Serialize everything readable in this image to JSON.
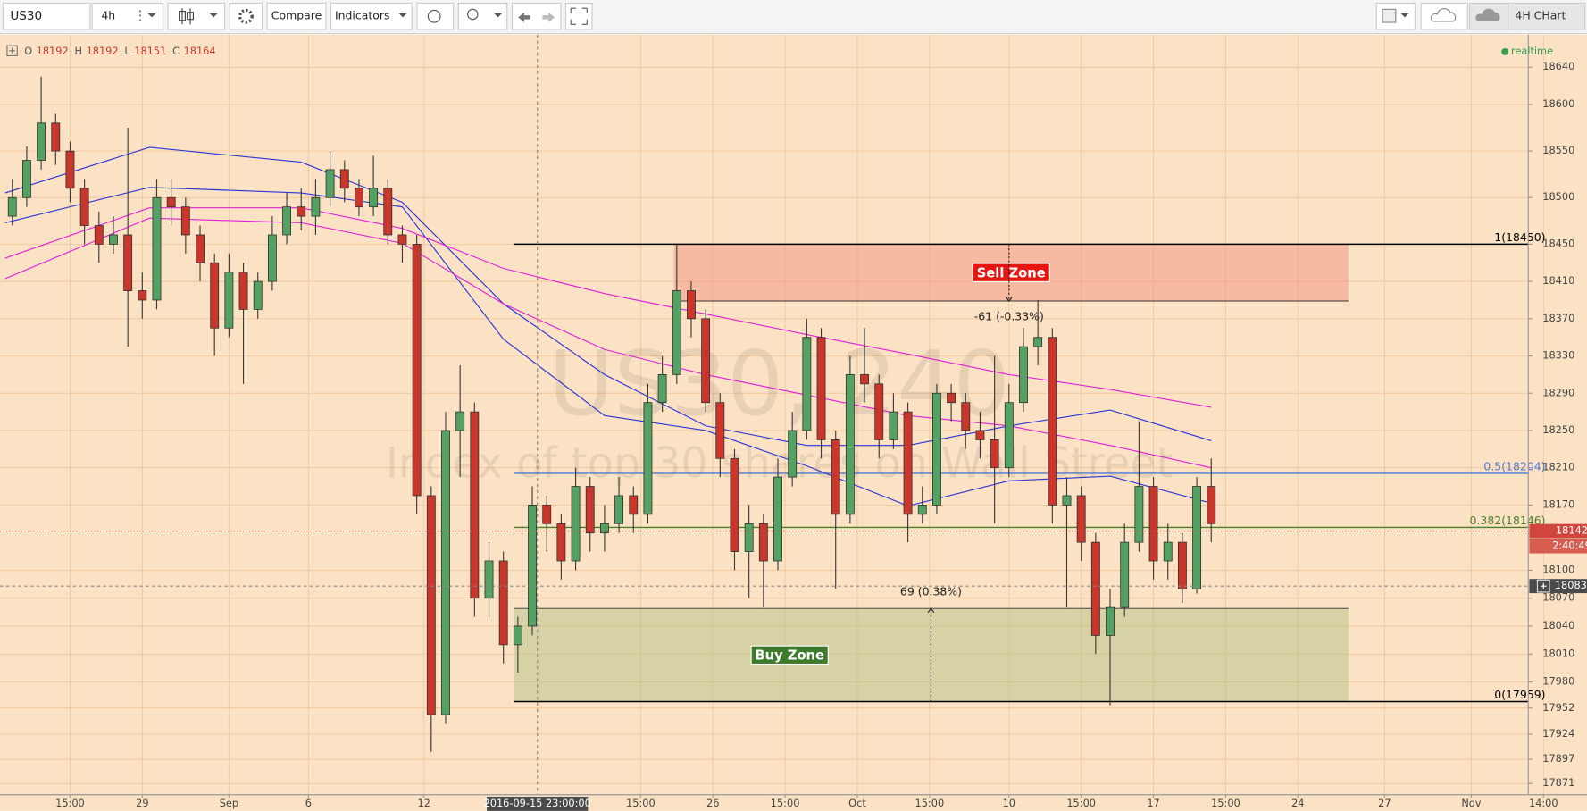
{
  "toolbar": {
    "symbol": "US30",
    "interval": "4h",
    "compare": "Compare",
    "indicators": "Indicators",
    "layout": "4H CHart"
  },
  "chart_data": {
    "type": "candlestick",
    "watermark": "US30, 240",
    "watermark_subtitle": "Index of top 30 shares on Wall Street",
    "ohlc_legend": {
      "labels": [
        "O",
        "H",
        "L",
        "C"
      ],
      "values": [
        18192,
        18192,
        18151,
        18164
      ]
    },
    "status": "realtime",
    "up_color": "#55a164",
    "down_color": "#c9372c",
    "x": [
      1,
      3,
      5,
      7,
      9,
      11,
      13,
      15,
      17,
      19,
      21,
      23,
      25,
      27,
      29,
      31,
      33,
      35,
      37,
      39,
      41,
      43,
      45,
      47,
      49,
      51,
      53,
      55,
      57,
      59,
      61,
      63,
      65,
      67,
      69,
      71,
      73,
      75,
      77,
      79,
      81,
      83,
      85,
      87,
      89,
      91,
      93,
      95,
      97,
      99,
      101,
      103,
      105,
      107,
      109,
      111,
      113,
      115,
      117,
      119,
      121,
      123,
      125,
      127,
      129,
      131,
      133,
      135,
      137,
      139,
      141,
      143,
      145,
      147,
      149,
      151,
      153,
      155,
      157,
      159,
      161,
      163,
      165,
      167
    ],
    "open": [
      18480,
      18500,
      18540,
      18580,
      18550,
      18510,
      18470,
      18450,
      18460,
      18400,
      18390,
      18500,
      18490,
      18460,
      18430,
      18360,
      18420,
      18380,
      18410,
      18460,
      18490,
      18480,
      18500,
      18530,
      18510,
      18490,
      18510,
      18460,
      18450,
      18180,
      17945,
      18250,
      18270,
      18070,
      18110,
      18020,
      18040,
      18170,
      18150,
      18110,
      18190,
      18140,
      18150,
      18180,
      18160,
      18280,
      18310,
      18400,
      18370,
      18280,
      18220,
      18120,
      18150,
      18110,
      18200,
      18250,
      18350,
      18240,
      18160,
      18310,
      18300,
      18240,
      18270,
      18160,
      18170,
      18290,
      18280,
      18250,
      18240,
      18210,
      18280,
      18340,
      18350,
      18170,
      18180,
      18130,
      18030,
      18060,
      18130,
      18190,
      18110,
      18130,
      18080,
      18190
    ],
    "high": [
      18520,
      18555,
      18630,
      18590,
      18560,
      18520,
      18485,
      18480,
      18575,
      18420,
      18520,
      18520,
      18500,
      18470,
      18440,
      18440,
      18430,
      18420,
      18480,
      18505,
      18510,
      18520,
      18550,
      18540,
      18520,
      18545,
      18520,
      18470,
      18460,
      18190,
      18270,
      18320,
      18280,
      18130,
      18120,
      18050,
      18190,
      18180,
      18160,
      18210,
      18200,
      18170,
      18200,
      18190,
      18300,
      18330,
      18450,
      18410,
      18380,
      18290,
      18230,
      18170,
      18160,
      18220,
      18270,
      18370,
      18360,
      18250,
      18330,
      18360,
      18310,
      18290,
      18280,
      18190,
      18300,
      18300,
      18290,
      18270,
      18330,
      18300,
      18360,
      18390,
      18360,
      18200,
      18190,
      18140,
      18080,
      18150,
      18260,
      18200,
      18150,
      18140,
      18200,
      18220
    ],
    "low": [
      18470,
      18490,
      18530,
      18535,
      18495,
      18450,
      18430,
      18440,
      18340,
      18370,
      18380,
      18470,
      18440,
      18410,
      18330,
      18350,
      18300,
      18370,
      18400,
      18450,
      18465,
      18460,
      18490,
      18495,
      18480,
      18480,
      18450,
      18430,
      18160,
      17905,
      17935,
      18200,
      18050,
      18050,
      18000,
      17990,
      18030,
      18120,
      18090,
      18100,
      18120,
      18120,
      18140,
      18140,
      18150,
      18270,
      18300,
      18350,
      18270,
      18200,
      18100,
      18070,
      18060,
      18100,
      18190,
      18240,
      18220,
      18080,
      18150,
      18280,
      18220,
      18230,
      18130,
      18150,
      18160,
      18260,
      18230,
      18220,
      18150,
      18200,
      18270,
      18320,
      18150,
      18060,
      18110,
      18010,
      17955,
      18050,
      18120,
      18090,
      18090,
      18065,
      18075,
      18130
    ],
    "close": [
      18500,
      18540,
      18580,
      18550,
      18510,
      18470,
      18450,
      18460,
      18400,
      18390,
      18500,
      18490,
      18460,
      18430,
      18360,
      18420,
      18380,
      18410,
      18460,
      18490,
      18480,
      18500,
      18530,
      18510,
      18490,
      18510,
      18460,
      18450,
      18180,
      17945,
      18250,
      18270,
      18070,
      18110,
      18020,
      18040,
      18170,
      18150,
      18110,
      18190,
      18140,
      18150,
      18180,
      18160,
      18280,
      18310,
      18400,
      18370,
      18280,
      18220,
      18120,
      18150,
      18110,
      18200,
      18250,
      18350,
      18240,
      18160,
      18310,
      18300,
      18240,
      18270,
      18160,
      18170,
      18290,
      18280,
      18250,
      18240,
      18210,
      18280,
      18340,
      18350,
      18170,
      18180,
      18130,
      18030,
      18060,
      18130,
      18190,
      18110,
      18130,
      18080,
      18190,
      18150
    ],
    "xlim": [
      0,
      213
    ],
    "xticks": [
      {
        "value": 9,
        "label": "15:00"
      },
      {
        "value": 19,
        "label": "29"
      },
      {
        "value": 31,
        "label": "Sep"
      },
      {
        "value": 42,
        "label": "6"
      },
      {
        "value": 58,
        "label": "12"
      },
      {
        "value": 88,
        "label": "15:00"
      },
      {
        "value": 98,
        "label": "26"
      },
      {
        "value": 108,
        "label": "15:00"
      },
      {
        "value": 118,
        "label": "Oct"
      },
      {
        "value": 128,
        "label": "15:00"
      },
      {
        "value": 139,
        "label": "10"
      },
      {
        "value": 149,
        "label": "15:00"
      },
      {
        "value": 159,
        "label": "17"
      },
      {
        "value": 169,
        "label": "15:00"
      },
      {
        "value": 179,
        "label": "24"
      },
      {
        "value": 191,
        "label": "27"
      },
      {
        "value": 203,
        "label": "Nov"
      },
      {
        "value": 213,
        "label": "14:00"
      }
    ],
    "ylim": [
      17859,
      18674
    ],
    "yticks": [
      18640,
      18600,
      18550,
      18500,
      18450,
      18410,
      18370,
      18330,
      18290,
      18250,
      18210,
      18170,
      18100,
      18070,
      18040,
      18010,
      17980,
      17952,
      17924,
      17897,
      17871
    ],
    "grid": true,
    "lines": [
      {
        "color": "#2b35d8",
        "x": [
          0,
          20,
          41,
          55,
          69,
          83,
          97,
          111,
          125,
          139,
          153,
          167
        ],
        "values": [
          18505,
          18554,
          18538,
          18495,
          18386,
          18310,
          18255,
          18234,
          18234,
          18255,
          18272,
          18239
        ]
      },
      {
        "color": "#2b35d8",
        "x": [
          0,
          20,
          41,
          55,
          69,
          83,
          97,
          111,
          125,
          139,
          153,
          167
        ],
        "values": [
          18473,
          18511,
          18505,
          18490,
          18348,
          18266,
          18250,
          18212,
          18169,
          18196,
          18201,
          18172
        ]
      },
      {
        "color": "#e020d8",
        "x": [
          0,
          20,
          41,
          55,
          69,
          83,
          97,
          111,
          125,
          139,
          153,
          167
        ],
        "values": [
          18435,
          18489,
          18489,
          18467,
          18424,
          18397,
          18375,
          18353,
          18332,
          18310,
          18294,
          18275
        ]
      },
      {
        "color": "#e020d8",
        "x": [
          0,
          20,
          41,
          55,
          69,
          83,
          97,
          111,
          125,
          139,
          153,
          167
        ],
        "values": [
          18413,
          18478,
          18473,
          18451,
          18386,
          18337,
          18310,
          18288,
          18266,
          18255,
          18234,
          18210
        ]
      }
    ],
    "levels": [
      {
        "value": 18450,
        "label": "1(18450)",
        "color": "#000000"
      },
      {
        "value": 18204,
        "label": "0.5(18204)",
        "color": "#4a7bd6"
      },
      {
        "value": 18146,
        "label": "0.382(18146)",
        "color": "#4d7f2a"
      },
      {
        "value": 17959,
        "label": "0(17959)",
        "color": "#000000"
      }
    ],
    "level_start": 70.5,
    "zones": [
      {
        "label": "Sell Zone",
        "range": [
          18389,
          18450
        ],
        "x": [
          92.6,
          186
        ],
        "fill": "#f08878",
        "label_bg": "#e8140f"
      },
      {
        "label": "Buy Zone",
        "range": [
          17959,
          18059
        ],
        "x": [
          70.5,
          186
        ],
        "fill": "#a9bf82",
        "label_bg": "#3d7a2c"
      }
    ],
    "measures": [
      {
        "label": "-61 (-0.33%)",
        "x": 139
      },
      {
        "label": "69 (0.38%)",
        "x": 128.2
      }
    ],
    "last_price": {
      "value": 18142,
      "countdown": "2:40:49",
      "color": "#d0453d"
    },
    "crosshair": {
      "x": 73.7,
      "x_label": "2016-09-15 23:00:00",
      "y": 18083
    }
  }
}
